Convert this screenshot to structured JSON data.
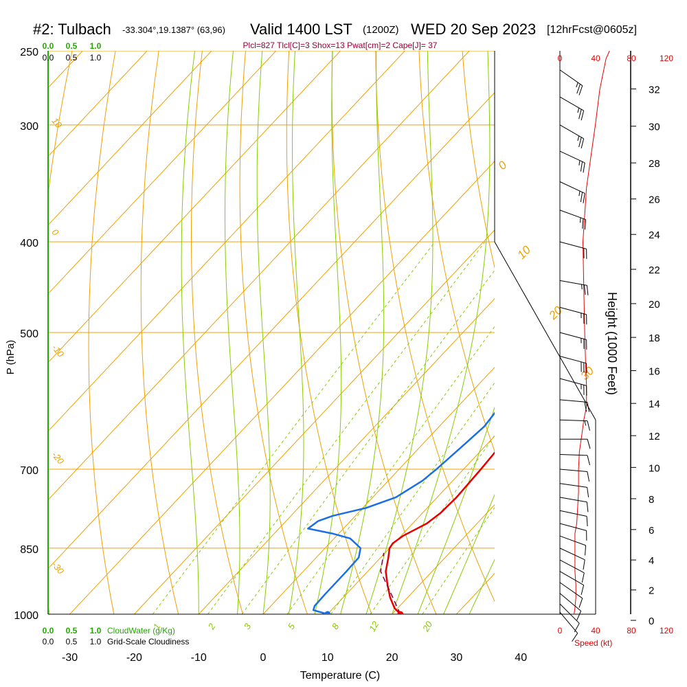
{
  "header": {
    "station": "#2: Tulbach",
    "coords": "-33.304°,19.1387° (63,96)",
    "valid": "Valid 1400 LST",
    "zulu": "(1200Z)",
    "date": "WED 20 Sep 2023",
    "forecast": "[12hrFcst@0605z]",
    "indices": "Plcl=827 Tlcl[C]=3 Shox=13 Pwat[cm]=2 Cape[J]= 37"
  },
  "colors": {
    "temperature": "#e60000",
    "dewpoint": "#1a6ee6",
    "isotherm": "#f0a000",
    "dry_adiabat": "#f0a000",
    "moist_adiabat": "#88cc00",
    "mixing_ratio": "#88cc00",
    "cloud": "#22aa00",
    "speed": "#e60000",
    "annotation": "#990033"
  },
  "chart_data": {
    "type": "line",
    "subtype": "skew-t log-p sounding",
    "xlabel": "Temperature (C)",
    "ylabel": "P (hPa)",
    "right_ylabel": "Height (1000 Feet)",
    "x_ticks": [
      -30,
      -20,
      -10,
      0,
      10,
      20,
      30,
      40
    ],
    "pressure_ticks": [
      250,
      300,
      400,
      500,
      700,
      850,
      1000
    ],
    "height_ticks": [
      0,
      2,
      4,
      6,
      8,
      10,
      12,
      14,
      16,
      18,
      20,
      22,
      24,
      26,
      28,
      30,
      32
    ],
    "isotherm_labels": [
      "10",
      "0",
      "-10",
      "-20",
      "-30"
    ],
    "dry_adiabat_labels": [
      "0",
      "10",
      "20",
      "30"
    ],
    "mixing_ratio_labels": [
      "1",
      "2",
      "3",
      "5",
      "8",
      "12",
      "20"
    ],
    "cloud_ticks": [
      "0.0",
      "0.5",
      "1.0"
    ],
    "cloud_water_label": "CloudWater (g/Kg)",
    "cloudiness_label": "Grid-Scale Cloudiness",
    "speed_label": "Speed (kt)",
    "speed_ticks": [
      "0",
      "40",
      "80",
      "120"
    ],
    "series": [
      {
        "name": "Temperature",
        "points": [
          [
            1000,
            21.3
          ],
          [
            985,
            19.5
          ],
          [
            960,
            17.3
          ],
          [
            930,
            15.0
          ],
          [
            900,
            12.8
          ],
          [
            870,
            11.2
          ],
          [
            850,
            10.0
          ],
          [
            840,
            9.8
          ],
          [
            825,
            10.3
          ],
          [
            800,
            12.2
          ],
          [
            780,
            12.8
          ],
          [
            750,
            13.0
          ],
          [
            700,
            12.7
          ],
          [
            670,
            12.4
          ],
          [
            640,
            12.8
          ],
          [
            600,
            13.2
          ],
          [
            570,
            12.5
          ],
          [
            540,
            10.3
          ],
          [
            500,
            7.5
          ],
          [
            450,
            3.5
          ],
          [
            400,
            -0.5
          ],
          [
            350,
            -4.6
          ],
          [
            300,
            -9.5
          ],
          [
            265,
            -13.0
          ]
        ]
      },
      {
        "name": "Dewpoint",
        "points": [
          [
            1000,
            10.0
          ],
          [
            990,
            7.2
          ],
          [
            980,
            6.8
          ],
          [
            950,
            6.7
          ],
          [
            900,
            6.7
          ],
          [
            870,
            6.6
          ],
          [
            850,
            5.5
          ],
          [
            830,
            2.5
          ],
          [
            820,
            -1.0
          ],
          [
            810,
            -5.5
          ],
          [
            795,
            -5.0
          ],
          [
            785,
            -3.5
          ],
          [
            770,
            0.5
          ],
          [
            750,
            3.6
          ],
          [
            720,
            5.3
          ],
          [
            700,
            5.8
          ],
          [
            660,
            6.5
          ],
          [
            630,
            7.0
          ],
          [
            600,
            6.5
          ],
          [
            580,
            5.5
          ],
          [
            560,
            4.0
          ],
          [
            530,
            1.5
          ],
          [
            500,
            -1.5
          ],
          [
            470,
            -4.5
          ],
          [
            440,
            -8.5
          ],
          [
            420,
            -11.0
          ],
          [
            400,
            -12.0
          ],
          [
            380,
            -12.5
          ],
          [
            370,
            -11.5
          ],
          [
            350,
            -8.0
          ],
          [
            325,
            -6.7
          ],
          [
            310,
            -6.8
          ],
          [
            300,
            -7.2
          ],
          [
            280,
            -8.4
          ],
          [
            265,
            -9.5
          ]
        ]
      },
      {
        "name": "Parcel",
        "points": [
          [
            1000,
            21.3
          ],
          [
            950,
            16.8
          ],
          [
            900,
            12.0
          ],
          [
            860,
            9.8
          ]
        ]
      }
    ],
    "surface": {
      "temperature": 21.3,
      "dewpoint": 10.0
    },
    "wind_barbs": [
      {
        "p": 995,
        "dir": 320,
        "spd": 12
      },
      {
        "p": 975,
        "dir": 315,
        "spd": 12
      },
      {
        "p": 950,
        "dir": 310,
        "spd": 12
      },
      {
        "p": 925,
        "dir": 305,
        "spd": 12
      },
      {
        "p": 900,
        "dir": 300,
        "spd": 10
      },
      {
        "p": 875,
        "dir": 298,
        "spd": 10
      },
      {
        "p": 850,
        "dir": 295,
        "spd": 10
      },
      {
        "p": 825,
        "dir": 290,
        "spd": 10
      },
      {
        "p": 800,
        "dir": 285,
        "spd": 10
      },
      {
        "p": 775,
        "dir": 282,
        "spd": 10
      },
      {
        "p": 750,
        "dir": 280,
        "spd": 10
      },
      {
        "p": 725,
        "dir": 278,
        "spd": 10
      },
      {
        "p": 700,
        "dir": 275,
        "spd": 10
      },
      {
        "p": 675,
        "dir": 272,
        "spd": 10
      },
      {
        "p": 650,
        "dir": 270,
        "spd": 10
      },
      {
        "p": 620,
        "dir": 272,
        "spd": 15
      },
      {
        "p": 590,
        "dir": 275,
        "spd": 20
      },
      {
        "p": 560,
        "dir": 285,
        "spd": 25
      },
      {
        "p": 530,
        "dir": 285,
        "spd": 30
      },
      {
        "p": 500,
        "dir": 285,
        "spd": 25
      },
      {
        "p": 470,
        "dir": 285,
        "spd": 25
      },
      {
        "p": 440,
        "dir": 280,
        "spd": 25
      },
      {
        "p": 400,
        "dir": 285,
        "spd": 20
      },
      {
        "p": 370,
        "dir": 290,
        "spd": 25
      },
      {
        "p": 345,
        "dir": 295,
        "spd": 25
      },
      {
        "p": 320,
        "dir": 295,
        "spd": 25
      },
      {
        "p": 300,
        "dir": 300,
        "spd": 25
      },
      {
        "p": 280,
        "dir": 300,
        "spd": 25
      },
      {
        "p": 262,
        "dir": 305,
        "spd": 25
      }
    ],
    "wind_speed_profile": [
      [
        1000,
        16
      ],
      [
        985,
        17
      ],
      [
        960,
        18
      ],
      [
        930,
        18
      ],
      [
        900,
        17
      ],
      [
        870,
        17
      ],
      [
        850,
        17
      ],
      [
        820,
        17
      ],
      [
        800,
        19
      ],
      [
        770,
        20
      ],
      [
        740,
        21
      ],
      [
        700,
        21
      ],
      [
        670,
        22
      ],
      [
        640,
        25
      ],
      [
        620,
        27
      ],
      [
        600,
        30
      ],
      [
        570,
        30
      ],
      [
        540,
        29
      ],
      [
        500,
        28
      ],
      [
        450,
        27
      ],
      [
        400,
        26
      ],
      [
        350,
        30
      ],
      [
        300,
        40
      ],
      [
        275,
        45
      ],
      [
        255,
        52
      ],
      [
        250,
        56
      ]
    ]
  }
}
